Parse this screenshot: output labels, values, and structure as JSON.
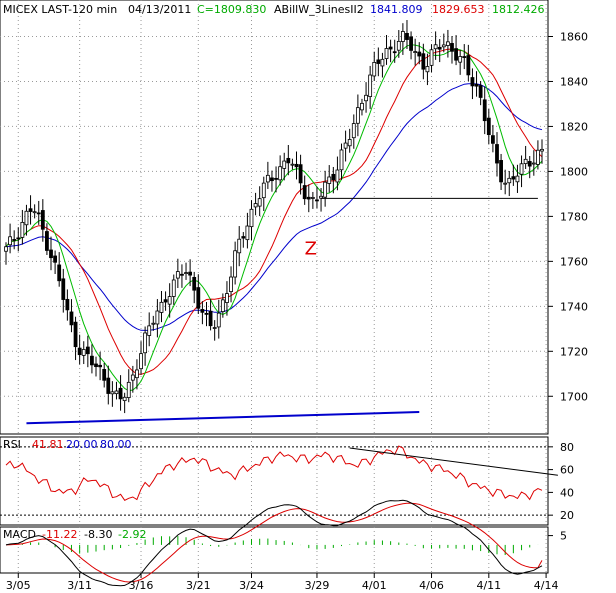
{
  "colors": {
    "text": "#000000",
    "grid": "#9a9a9a",
    "candle_up": "#ffffff",
    "candle_down": "#000000",
    "blue": "#0000cc",
    "red": "#dd0000",
    "green": "#00bb00",
    "trend_blue": "#0000cc",
    "annotation_red": "#dd0000",
    "rsi_line": "#dd0000",
    "macd_black": "#000000",
    "macd_red": "#dd0000",
    "macd_hist": "#00aa00"
  },
  "header": {
    "symbol": "MICEX LAST-120 min",
    "date": "04/13/2011",
    "close": "C=1809.830",
    "study": "ABillW_3LinesII2",
    "blue_value": "1841.809",
    "red_value": "1829.653",
    "green_value": "1812.426"
  },
  "rsi_header": {
    "label": "RSI",
    "value": "41.81",
    "low": "20.00",
    "high": "80.00"
  },
  "macd_header": {
    "label": "MACD",
    "macd": "-11.22",
    "signal": "-8.30",
    "hist": "-2.92"
  },
  "annotation": {
    "text": "Z"
  },
  "chart_data": [
    {
      "type": "candlestick",
      "title": "MICEX LAST-120 min",
      "ylim": [
        1685,
        1870
      ],
      "y_ticks": [
        1700,
        1720,
        1740,
        1760,
        1780,
        1800,
        1820,
        1840,
        1860
      ],
      "y_tick_labels": [
        "1700",
        "1720",
        "1740",
        "1760",
        "1780",
        "1800",
        "1820",
        "1840",
        "1860"
      ],
      "x_tick_labels": [
        "3/05",
        "3/11",
        "3/16",
        "3/21",
        "3/24",
        "3/29",
        "4/01",
        "4/06",
        "4/11",
        "4/14"
      ],
      "x_tick_bars": [
        3,
        18,
        33,
        47,
        60,
        76,
        90,
        104,
        118,
        132
      ],
      "bar_count": 132,
      "price_path": [
        1765,
        1768,
        1772,
        1776,
        1780,
        1783,
        1782,
        1777,
        1771,
        1765,
        1758,
        1750,
        1742,
        1733,
        1726,
        1722,
        1719,
        1716,
        1714,
        1712,
        1709,
        1705,
        1701,
        1698,
        1699,
        1704,
        1709,
        1716,
        1722,
        1727,
        1733,
        1738,
        1741,
        1745,
        1748,
        1751,
        1755,
        1757,
        1752,
        1745,
        1738,
        1733,
        1731,
        1734,
        1739,
        1745,
        1752,
        1761,
        1769,
        1775,
        1780,
        1785,
        1789,
        1793,
        1796,
        1799,
        1801,
        1803,
        1805,
        1802,
        1797,
        1793,
        1789,
        1786,
        1787,
        1791,
        1795,
        1799,
        1803,
        1808,
        1812,
        1818,
        1825,
        1832,
        1838,
        1843,
        1847,
        1850,
        1853,
        1855,
        1857,
        1859,
        1858,
        1856,
        1853,
        1850,
        1847,
        1850,
        1853,
        1856,
        1858,
        1856,
        1853,
        1850,
        1847,
        1843,
        1840,
        1836,
        1827,
        1817,
        1808,
        1801,
        1797,
        1795,
        1797,
        1799,
        1801,
        1804,
        1806,
        1808,
        1809.8
      ],
      "series_last": [
        {
          "name": "blue",
          "value": 1841.809
        },
        {
          "name": "red",
          "value": 1829.653
        },
        {
          "name": "green",
          "value": 1812.426
        }
      ],
      "horizontal_line": {
        "y": 1788,
        "x_start_bar": 77,
        "x_end_bar": 130
      },
      "trendline": {
        "start": {
          "bar": 5,
          "y": 1688
        },
        "end": {
          "bar": 101,
          "y": 1693
        }
      },
      "annotation_label": {
        "text": "Z",
        "bar": 73,
        "y": 1763
      }
    },
    {
      "type": "line",
      "title": "RSI",
      "ylim": [
        14,
        86
      ],
      "y_ticks": [
        20,
        40,
        60,
        80
      ],
      "y_tick_labels": [
        "20",
        "40",
        "60",
        "80"
      ],
      "ref_lines": [
        20,
        80
      ],
      "last": 41.81,
      "path": [
        62,
        66,
        63,
        58,
        53,
        49,
        44,
        41,
        40,
        42,
        47,
        52,
        50,
        45,
        40,
        36,
        33,
        36,
        42,
        48,
        55,
        60,
        64,
        66,
        68,
        70,
        67,
        63,
        60,
        57,
        55,
        58,
        61,
        64,
        67,
        70,
        72,
        73,
        71,
        70,
        69,
        71,
        73,
        72,
        70,
        67,
        64,
        65,
        68,
        72,
        75,
        77,
        78,
        74,
        70,
        66,
        64,
        62,
        60,
        57,
        54,
        50,
        47,
        44,
        42,
        40,
        38,
        37,
        36,
        38,
        40,
        41.81
      ],
      "divergence_line": {
        "start": {
          "bar": 84,
          "y": 79
        },
        "end": {
          "bar": 130,
          "y": 55
        }
      }
    },
    {
      "type": "line",
      "title": "MACD",
      "ylim": [
        -14,
        8
      ],
      "y_ticks": [
        5
      ],
      "y_tick_labels": [
        "5"
      ],
      "macd_last": -11.22,
      "signal_last": -8.3,
      "hist_last": -2.92
    }
  ]
}
